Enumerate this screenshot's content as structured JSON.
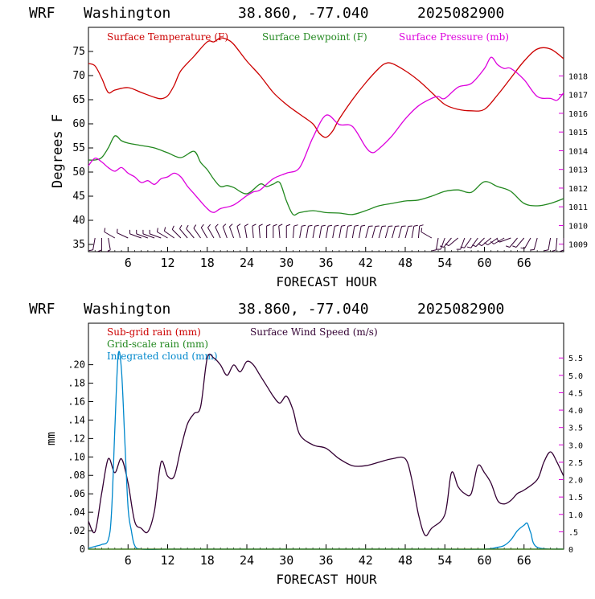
{
  "colors": {
    "temperature": "#cc0000",
    "dewpoint": "#22881f",
    "pressure": "#dd00dd",
    "wind_speed": "#330033",
    "subgrid_rain": "#cc0000",
    "gridscale_rain": "#22881f",
    "cloud": "#0088cc",
    "wind_barbs": "#330033"
  },
  "top_panel": {
    "title": {
      "model": "WRF",
      "location": "Washington",
      "coords": "38.860, -77.040",
      "init": "2025082900"
    },
    "ylabel": "Degrees F",
    "xlabel": "FORECAST HOUR",
    "legend": [
      "Surface Temperature (F)",
      "Surface Dewpoint (F)",
      "Surface Pressure (mb)"
    ]
  },
  "bottom_panel": {
    "title": {
      "model": "WRF",
      "location": "Washington",
      "coords": "38.860, -77.040",
      "init": "2025082900"
    },
    "ylabel": "mm",
    "xlabel": "FORECAST HOUR",
    "legend_left": [
      "Sub-grid rain (mm)",
      "Grid-scale rain (mm)",
      "Integrated cloud (mm)"
    ],
    "legend_right": "Surface Wind Speed (m/s)"
  },
  "chart_data": [
    {
      "type": "line",
      "title": "WRF Washington 38.860, -77.040 2025082900",
      "xlabel": "FORECAST HOUR",
      "ylabel": "Degrees F",
      "xlim": [
        0,
        72
      ],
      "ylim": [
        33.5,
        80
      ],
      "y2lim": [
        1008.6,
        1020.6
      ],
      "x_ticks": [
        6,
        12,
        18,
        24,
        30,
        36,
        42,
        48,
        54,
        60,
        66
      ],
      "y_ticks": [
        35,
        40,
        45,
        50,
        55,
        60,
        65,
        70,
        75
      ],
      "y2_ticks": [
        1009,
        1010,
        1011,
        1012,
        1013,
        1014,
        1015,
        1016,
        1017,
        1018
      ],
      "grid": false,
      "legend_position": "top",
      "series": [
        {
          "name": "Surface Temperature (F)",
          "axis": "left",
          "x": [
            0,
            1,
            2,
            3,
            4,
            6,
            8,
            10,
            11,
            12,
            13,
            14,
            16,
            18,
            19,
            20,
            21,
            22,
            24,
            26,
            28,
            30,
            32,
            34,
            35,
            36,
            37,
            38,
            40,
            42,
            44,
            45,
            46,
            48,
            50,
            52,
            54,
            56,
            58,
            60,
            62,
            64,
            66,
            68,
            70,
            72
          ],
          "values": [
            72.5,
            72,
            69.5,
            66.5,
            67,
            67.5,
            66.5,
            65.5,
            65.2,
            65.8,
            68,
            71,
            74,
            77,
            77,
            77.8,
            77.5,
            76.5,
            73,
            70,
            66.5,
            64,
            62,
            60,
            58,
            57.2,
            58.5,
            61,
            65,
            68.5,
            71.5,
            72.5,
            72.5,
            71,
            69,
            66.5,
            64,
            63,
            62.7,
            63,
            66,
            69.5,
            73,
            75.5,
            75.5,
            73.5
          ]
        },
        {
          "name": "Surface Dewpoint (F)",
          "axis": "left",
          "x": [
            0,
            1,
            2,
            3,
            4,
            5,
            6,
            8,
            10,
            12,
            14,
            16,
            17,
            18,
            19,
            20,
            21,
            22,
            24,
            26,
            27,
            28,
            29,
            30,
            31,
            32,
            34,
            36,
            38,
            40,
            42,
            44,
            46,
            48,
            50,
            52,
            54,
            56,
            58,
            60,
            62,
            64,
            66,
            68,
            70,
            72
          ],
          "values": [
            52.5,
            52.5,
            53,
            55,
            57.5,
            56.5,
            56,
            55.5,
            55,
            54,
            53,
            54.3,
            52,
            50.5,
            48.5,
            47,
            47.2,
            46.8,
            45.5,
            47.5,
            47,
            47.5,
            47.8,
            44,
            41.2,
            41.6,
            42,
            41.6,
            41.5,
            41.2,
            42,
            43,
            43.5,
            44,
            44.2,
            45,
            46,
            46.3,
            45.8,
            48,
            47,
            46,
            43.5,
            43,
            43.5,
            44.5
          ]
        },
        {
          "name": "Surface Pressure (mb)",
          "axis": "right",
          "x": [
            0,
            1,
            2,
            3,
            4,
            5,
            6,
            7,
            8,
            9,
            10,
            11,
            12,
            13,
            14,
            15,
            16,
            18,
            19,
            20,
            22,
            24,
            25,
            26,
            28,
            30,
            32,
            34,
            36,
            38,
            40,
            42,
            43,
            44,
            46,
            48,
            50,
            52,
            53,
            54,
            56,
            58,
            60,
            61,
            62,
            63,
            64,
            66,
            68,
            70,
            71,
            72
          ],
          "values": [
            1013.2,
            1013.6,
            1013.4,
            1013.1,
            1012.9,
            1013.1,
            1012.8,
            1012.6,
            1012.3,
            1012.4,
            1012.2,
            1012.5,
            1012.6,
            1012.8,
            1012.6,
            1012.1,
            1011.7,
            1010.9,
            1010.7,
            1010.9,
            1011.1,
            1011.6,
            1011.8,
            1011.9,
            1012.5,
            1012.8,
            1013.1,
            1014.7,
            1015.9,
            1015.4,
            1015.3,
            1014.2,
            1013.9,
            1014.1,
            1014.8,
            1015.7,
            1016.4,
            1016.8,
            1016.9,
            1016.8,
            1017.4,
            1017.6,
            1018.4,
            1019.0,
            1018.6,
            1018.4,
            1018.4,
            1017.8,
            1016.9,
            1016.8,
            1016.7,
            1017.1
          ]
        }
      ]
    },
    {
      "type": "line",
      "title": "WRF Washington 38.860, -77.040 2025082900",
      "xlabel": "FORECAST HOUR",
      "ylabel": "mm",
      "xlim": [
        0,
        72
      ],
      "ylim": [
        0,
        0.245
      ],
      "y2lim": [
        0,
        6.5
      ],
      "x_ticks": [
        6,
        12,
        18,
        24,
        30,
        36,
        42,
        48,
        54,
        60,
        66
      ],
      "y_ticks": [
        0,
        0.02,
        0.04,
        0.06,
        0.08,
        0.1,
        0.12,
        0.14,
        0.16,
        0.18,
        0.2
      ],
      "y_tick_labels": [
        "0",
        ".02",
        ".04",
        ".06",
        ".08",
        ".10",
        ".12",
        ".14",
        ".16",
        ".18",
        ".20"
      ],
      "y2_ticks": [
        0,
        0.5,
        1.0,
        1.5,
        2.0,
        2.5,
        3.0,
        3.5,
        4.0,
        4.5,
        5.0,
        5.5
      ],
      "y2_tick_labels": [
        "0",
        ".5",
        "1.0",
        "1.5",
        "2.0",
        "2.5",
        "3.0",
        "3.5",
        "4.0",
        "4.5",
        "5.0",
        "5.5"
      ],
      "grid": false,
      "legend_position": "top",
      "series": [
        {
          "name": "Surface Wind Speed (m/s)",
          "axis": "right",
          "x": [
            0,
            1,
            2,
            3,
            4,
            5,
            6,
            7,
            8,
            9,
            10,
            11,
            12,
            13,
            14,
            15,
            16,
            17,
            18,
            19,
            20,
            21,
            22,
            23,
            24,
            25,
            26,
            27,
            28,
            29,
            30,
            31,
            32,
            34,
            36,
            38,
            40,
            42,
            44,
            46,
            48,
            49,
            50,
            51,
            52,
            54,
            55,
            56,
            57,
            58,
            59,
            60,
            61,
            62,
            63,
            64,
            65,
            66,
            68,
            69,
            70,
            71,
            72
          ],
          "values": [
            0.8,
            0.5,
            1.6,
            2.6,
            2.2,
            2.6,
            1.9,
            0.8,
            0.6,
            0.5,
            1.1,
            2.5,
            2.1,
            2.1,
            2.9,
            3.6,
            3.9,
            4.1,
            5.5,
            5.5,
            5.3,
            5.0,
            5.3,
            5.1,
            5.4,
            5.3,
            5.0,
            4.7,
            4.4,
            4.2,
            4.4,
            4.0,
            3.3,
            3.0,
            2.9,
            2.6,
            2.4,
            2.4,
            2.5,
            2.6,
            2.6,
            2.0,
            1.0,
            0.4,
            0.6,
            1.0,
            2.2,
            1.8,
            1.6,
            1.6,
            2.4,
            2.2,
            1.9,
            1.4,
            1.3,
            1.4,
            1.6,
            1.7,
            2.0,
            2.5,
            2.8,
            2.5,
            2.1
          ]
        },
        {
          "name": "Integrated cloud (mm)",
          "axis": "left",
          "x": [
            0,
            1,
            2,
            3,
            3.5,
            4,
            4.5,
            5,
            5.5,
            6,
            6.5,
            7,
            8,
            12,
            18,
            24,
            30,
            36,
            42,
            48,
            54,
            60,
            62,
            63,
            64,
            65,
            66,
            66.5,
            67,
            68,
            72
          ],
          "values": [
            0.001,
            0.003,
            0.005,
            0.01,
            0.04,
            0.13,
            0.21,
            0.195,
            0.12,
            0.045,
            0.02,
            0.004,
            0,
            0,
            0,
            0,
            0,
            0,
            0,
            0,
            0,
            0,
            0.002,
            0.004,
            0.01,
            0.02,
            0.026,
            0.028,
            0.018,
            0.002,
            0
          ]
        },
        {
          "name": "Sub-grid rain (mm)",
          "axis": "left",
          "x": [
            0,
            72
          ],
          "values": [
            0,
            0
          ]
        },
        {
          "name": "Grid-scale rain (mm)",
          "axis": "left",
          "x": [
            0,
            72
          ],
          "values": [
            0,
            0
          ]
        }
      ]
    }
  ],
  "wind_barbs": {
    "hours": [
      1,
      2,
      3,
      4,
      6,
      8,
      9,
      10,
      11,
      12,
      13,
      14,
      15,
      16,
      17,
      18,
      19,
      20,
      21,
      22,
      23,
      24,
      25,
      26,
      27,
      28,
      29,
      30,
      31,
      32,
      33,
      34,
      35,
      36,
      37,
      38,
      39,
      40,
      41,
      42,
      43,
      44,
      45,
      46,
      47,
      48,
      49,
      50,
      52,
      53,
      54,
      55,
      56,
      57,
      58,
      59,
      60,
      61,
      62,
      63,
      64,
      65,
      66,
      67,
      68,
      70,
      71,
      72
    ],
    "directions_deg": [
      190,
      180,
      170,
      300,
      295,
      290,
      290,
      290,
      290,
      300,
      305,
      315,
      320,
      320,
      325,
      330,
      330,
      335,
      340,
      340,
      345,
      350,
      355,
      355,
      0,
      0,
      355,
      0,
      5,
      10,
      10,
      10,
      10,
      10,
      10,
      10,
      10,
      10,
      10,
      15,
      15,
      15,
      15,
      15,
      15,
      15,
      10,
      5,
      300,
      190,
      200,
      220,
      230,
      200,
      215,
      215,
      225,
      230,
      235,
      240,
      250,
      220,
      220,
      210,
      195,
      190,
      185,
      180
    ]
  }
}
